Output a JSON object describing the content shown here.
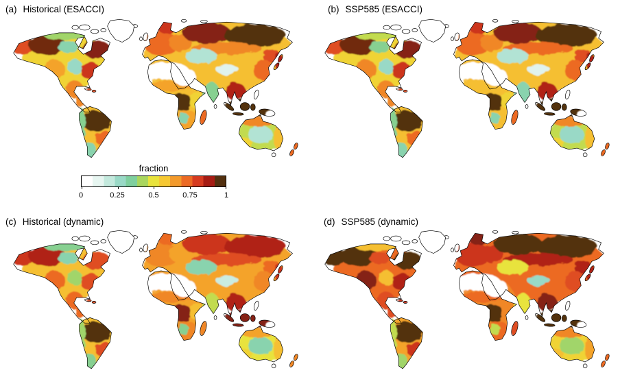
{
  "chart_data": {
    "type": "heatmap",
    "subtype": "global-choropleth-maps",
    "description": "Four global maps of vegetated fraction (0-1); deserts (Sahara, Arabia) and Greenland unshaded.",
    "units": "fraction (0-1)",
    "colorbar": {
      "title": "fraction",
      "ticks": [
        "0",
        "0.25",
        "0.5",
        "0.75",
        "1"
      ],
      "range": [
        0,
        1
      ],
      "palette": [
        "#ffffff",
        "#e7f6f1",
        "#c3e9dd",
        "#99d9c6",
        "#7fcf9e",
        "#a9d65e",
        "#e8e33c",
        "#f6c832",
        "#f39a2b",
        "#ec6a24",
        "#d63b20",
        "#a61c14",
        "#533010"
      ]
    },
    "panels": [
      {
        "id": "a",
        "label": "(a)",
        "title": "Historical (ESACCI)",
        "region_fractions": {
          "na-base": 0.55,
          "eurasia-base": 0.6,
          "africa-base": 0.6,
          "sa-base": 0.6,
          "aus-base": 0.45,
          "alaska": 0.8,
          "boreal-west": 0.97,
          "boreal-east": 0.95,
          "tundra-canada": 0.4,
          "central-canada": 0.3,
          "west-us": 0.65,
          "east-us": 0.85,
          "central-us": 0.25,
          "mexico": 0.7,
          "caribbean-region": 0.8,
          "amazon": 1.0,
          "brazil-south": 0.75,
          "andes": 0.35,
          "patagonia": 0.3,
          "europe": 0.75,
          "scandinavia": 0.85,
          "east-europe": 0.7,
          "siberia-west": 0.95,
          "siberia-east": 1.0,
          "siberia-south": 0.7,
          "central-asia": 0.2,
          "tibet": 0.1,
          "ne-china": 0.8,
          "east-asia": 0.75,
          "japan-region": 0.9,
          "india": 0.35,
          "se-asia": 0.9,
          "indonesia-region": 1.0,
          "sahel": 0.65,
          "congo": 1.0,
          "east-africa": 0.55,
          "south-africa": 0.65,
          "kalahari": 0.3,
          "madagascar-region": 0.75,
          "australia-north": 0.7,
          "australia-east": 0.6,
          "australia-sw": 0.55,
          "australia-center": 0.2,
          "nz-region": 0.75
        }
      },
      {
        "id": "b",
        "label": "(b)",
        "title": "SSP585 (ESACCI)",
        "region_fractions": {
          "na-base": 0.55,
          "eurasia-base": 0.6,
          "africa-base": 0.6,
          "sa-base": 0.6,
          "aus-base": 0.45,
          "alaska": 0.8,
          "boreal-west": 0.97,
          "boreal-east": 0.95,
          "tundra-canada": 0.45,
          "central-canada": 0.35,
          "west-us": 0.7,
          "east-us": 0.85,
          "central-us": 0.25,
          "mexico": 0.7,
          "caribbean-region": 0.8,
          "amazon": 1.0,
          "brazil-south": 0.75,
          "andes": 0.35,
          "patagonia": 0.3,
          "europe": 0.75,
          "scandinavia": 0.85,
          "east-europe": 0.7,
          "siberia-west": 0.95,
          "siberia-east": 1.0,
          "siberia-south": 0.75,
          "central-asia": 0.2,
          "tibet": 0.1,
          "ne-china": 0.8,
          "east-asia": 0.75,
          "japan-region": 0.9,
          "india": 0.3,
          "se-asia": 0.9,
          "indonesia-region": 1.0,
          "sahel": 0.6,
          "congo": 1.0,
          "east-africa": 0.55,
          "south-africa": 0.6,
          "kalahari": 0.3,
          "madagascar-region": 0.75,
          "australia-north": 0.7,
          "australia-east": 0.6,
          "australia-sw": 0.55,
          "australia-center": 0.25,
          "nz-region": 0.75
        }
      },
      {
        "id": "c",
        "label": "(c)",
        "title": "Historical (dynamic)",
        "region_fractions": {
          "na-base": 0.6,
          "eurasia-base": 0.65,
          "africa-base": 0.65,
          "sa-base": 0.6,
          "aus-base": 0.5,
          "alaska": 0.85,
          "boreal-west": 0.9,
          "boreal-east": 0.8,
          "tundra-canada": 0.35,
          "central-canada": 0.3,
          "west-us": 0.75,
          "east-us": 0.8,
          "central-us": 0.4,
          "mexico": 0.75,
          "caribbean-region": 0.8,
          "amazon": 1.0,
          "brazil-south": 0.8,
          "andes": 0.4,
          "patagonia": 0.35,
          "europe": 0.7,
          "scandinavia": 0.75,
          "east-europe": 0.65,
          "siberia-west": 0.85,
          "siberia-east": 0.9,
          "siberia-south": 0.8,
          "central-asia": 0.3,
          "tibet": 0.15,
          "ne-china": 0.75,
          "east-asia": 0.7,
          "japan-region": 0.85,
          "india": 0.45,
          "se-asia": 0.9,
          "indonesia-region": 0.95,
          "sahel": 0.7,
          "congo": 0.95,
          "east-africa": 0.6,
          "south-africa": 0.7,
          "kalahari": 0.35,
          "madagascar-region": 0.7,
          "australia-north": 0.65,
          "australia-east": 0.6,
          "australia-sw": 0.55,
          "australia-center": 0.3,
          "nz-region": 0.7
        }
      },
      {
        "id": "d",
        "label": "(d)",
        "title": "SSP585 (dynamic)",
        "region_fractions": {
          "na-base": 0.75,
          "eurasia-base": 0.75,
          "africa-base": 0.7,
          "sa-base": 0.65,
          "aus-base": 0.55,
          "alaska": 1.0,
          "boreal-west": 1.0,
          "boreal-east": 1.0,
          "tundra-canada": 0.6,
          "central-canada": 0.8,
          "west-us": 0.95,
          "east-us": 0.9,
          "central-us": 0.6,
          "mexico": 0.8,
          "caribbean-region": 0.85,
          "amazon": 1.0,
          "brazil-south": 0.85,
          "andes": 0.45,
          "patagonia": 0.4,
          "europe": 0.85,
          "scandinavia": 0.95,
          "east-europe": 0.85,
          "siberia-west": 1.0,
          "siberia-east": 1.0,
          "siberia-south": 0.9,
          "central-asia": 0.5,
          "tibet": 0.25,
          "ne-china": 0.9,
          "east-asia": 0.8,
          "japan-region": 0.9,
          "india": 0.5,
          "se-asia": 0.95,
          "indonesia-region": 1.0,
          "sahel": 0.75,
          "congo": 1.0,
          "east-africa": 0.7,
          "south-africa": 0.75,
          "kalahari": 0.45,
          "madagascar-region": 0.8,
          "australia-north": 0.7,
          "australia-east": 0.65,
          "australia-sw": 0.6,
          "australia-center": 0.4,
          "nz-region": 0.75
        }
      }
    ]
  }
}
